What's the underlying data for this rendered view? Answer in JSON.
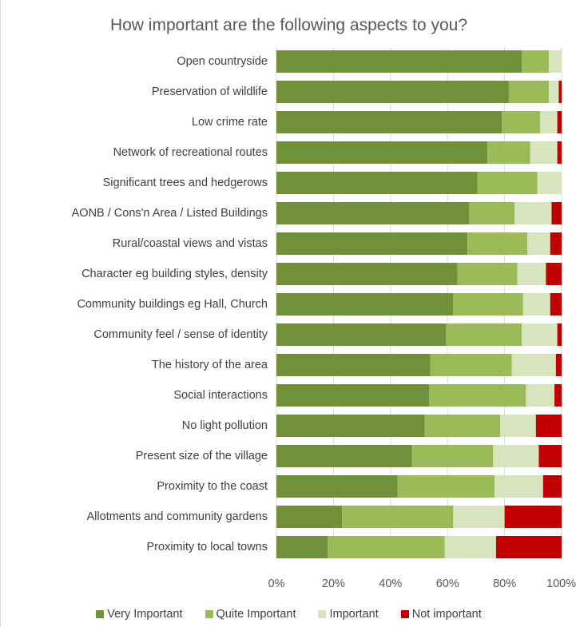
{
  "chart_data": {
    "type": "bar",
    "orientation": "horizontal",
    "stacked": true,
    "title": "How important are the following aspects to you?",
    "categories": [
      "Open countryside",
      "Preservation of wildlife",
      "Low crime rate",
      "Network of recreational routes",
      "Significant trees and hedgerows",
      "AONB / Cons'n Area / Listed Buildings",
      "Rural/coastal views and vistas",
      "Character eg building styles, density",
      "Community buildings eg Hall, Church",
      "Community feel / sense of identity",
      "The history of the area",
      "Social interactions",
      "No light pollution",
      "Present size of the village",
      "Proximity to the coast",
      "Allotments and community gardens",
      "Proximity to local towns"
    ],
    "series": [
      {
        "name": "Very Important",
        "color": "#70913a",
        "values": [
          86,
          81.5,
          79,
          74,
          70.5,
          67.5,
          67,
          63.5,
          62,
          59.5,
          54,
          53.5,
          52,
          47.5,
          42.5,
          23,
          18
        ]
      },
      {
        "name": "Quite Important",
        "color": "#9bbb59",
        "values": [
          9.5,
          14,
          13.5,
          15,
          21,
          16,
          21,
          21,
          24.5,
          26.5,
          28.5,
          34,
          26.5,
          28.5,
          34,
          39,
          41
        ]
      },
      {
        "name": "Important",
        "color": "#d7e4bd",
        "values": [
          4.5,
          3.5,
          6,
          9.5,
          8.5,
          13,
          8,
          10,
          9.5,
          12.5,
          15.5,
          10,
          12.5,
          16,
          17,
          18,
          18
        ]
      },
      {
        "name": "Not important",
        "color": "#c00000",
        "values": [
          0,
          1,
          1.5,
          1.5,
          0,
          3.5,
          4,
          5.5,
          4,
          1.5,
          2,
          2.5,
          9,
          8,
          6.5,
          20,
          23
        ]
      }
    ],
    "xlim": [
      0,
      100
    ],
    "x_tick_labels": [
      "0%",
      "20%",
      "40%",
      "60%",
      "80%",
      "100%"
    ],
    "x_ticks": [
      0,
      20,
      40,
      60,
      80,
      100
    ],
    "grid": true,
    "legend_position": "bottom",
    "xlabel": "",
    "ylabel": ""
  }
}
